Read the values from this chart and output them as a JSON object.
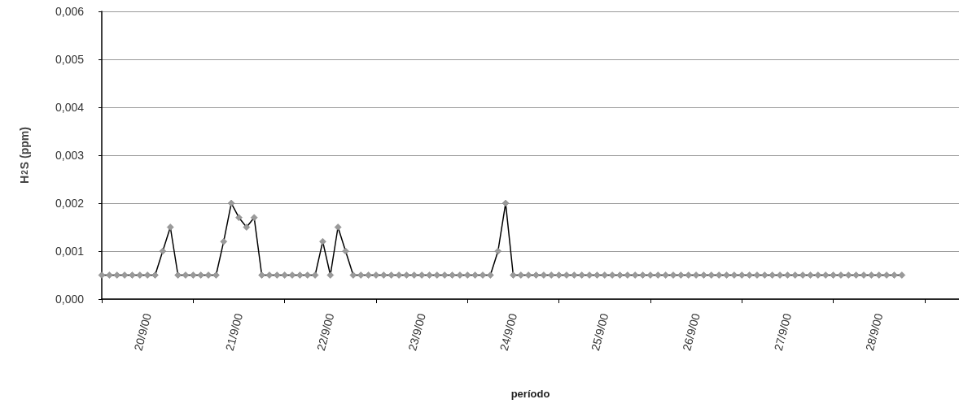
{
  "chart_data": {
    "type": "line",
    "xlabel": "período",
    "ylabel": "H$_{2}$S (ppm)",
    "x": [
      "2000-09-20T00:00",
      "2000-09-20T02:00",
      "2000-09-20T04:00",
      "2000-09-20T06:00",
      "2000-09-20T08:00",
      "2000-09-20T10:00",
      "2000-09-20T12:00",
      "2000-09-20T14:00",
      "2000-09-20T16:00",
      "2000-09-20T18:00",
      "2000-09-20T20:00",
      "2000-09-20T22:00",
      "2000-09-21T00:00",
      "2000-09-21T02:00",
      "2000-09-21T04:00",
      "2000-09-21T06:00",
      "2000-09-21T08:00",
      "2000-09-21T10:00",
      "2000-09-21T12:00",
      "2000-09-21T14:00",
      "2000-09-21T16:00",
      "2000-09-21T18:00",
      "2000-09-21T20:00",
      "2000-09-21T22:00",
      "2000-09-22T00:00",
      "2000-09-22T02:00",
      "2000-09-22T04:00",
      "2000-09-22T06:00",
      "2000-09-22T08:00",
      "2000-09-22T10:00",
      "2000-09-22T12:00",
      "2000-09-22T14:00",
      "2000-09-22T16:00",
      "2000-09-22T18:00",
      "2000-09-22T20:00",
      "2000-09-22T22:00",
      "2000-09-23T00:00",
      "2000-09-23T02:00",
      "2000-09-23T04:00",
      "2000-09-23T06:00",
      "2000-09-23T08:00",
      "2000-09-23T10:00",
      "2000-09-23T12:00",
      "2000-09-23T14:00",
      "2000-09-23T16:00",
      "2000-09-23T18:00",
      "2000-09-23T20:00",
      "2000-09-23T22:00",
      "2000-09-24T00:00",
      "2000-09-24T02:00",
      "2000-09-24T04:00",
      "2000-09-24T06:00",
      "2000-09-24T08:00",
      "2000-09-24T10:00",
      "2000-09-24T12:00",
      "2000-09-24T14:00",
      "2000-09-24T16:00",
      "2000-09-24T18:00",
      "2000-09-24T20:00",
      "2000-09-24T22:00",
      "2000-09-25T00:00",
      "2000-09-25T02:00",
      "2000-09-25T04:00",
      "2000-09-25T06:00",
      "2000-09-25T08:00",
      "2000-09-25T10:00",
      "2000-09-25T12:00",
      "2000-09-25T14:00",
      "2000-09-25T16:00",
      "2000-09-25T18:00",
      "2000-09-25T20:00",
      "2000-09-25T22:00",
      "2000-09-26T00:00",
      "2000-09-26T02:00",
      "2000-09-26T04:00",
      "2000-09-26T06:00",
      "2000-09-26T08:00",
      "2000-09-26T10:00",
      "2000-09-26T12:00",
      "2000-09-26T14:00",
      "2000-09-26T16:00",
      "2000-09-26T18:00",
      "2000-09-26T20:00",
      "2000-09-26T22:00",
      "2000-09-27T00:00",
      "2000-09-27T02:00",
      "2000-09-27T04:00",
      "2000-09-27T06:00",
      "2000-09-27T08:00",
      "2000-09-27T10:00",
      "2000-09-27T12:00",
      "2000-09-27T14:00",
      "2000-09-27T16:00",
      "2000-09-27T18:00",
      "2000-09-27T20:00",
      "2000-09-27T22:00",
      "2000-09-28T00:00",
      "2000-09-28T02:00",
      "2000-09-28T04:00",
      "2000-09-28T06:00",
      "2000-09-28T08:00",
      "2000-09-28T10:00",
      "2000-09-28T12:00",
      "2000-09-28T14:00",
      "2000-09-28T16:00",
      "2000-09-28T18:00"
    ],
    "series": [
      {
        "color": "#9a9a9a",
        "values": [
          0.0005,
          0.0005,
          0.0005,
          0.0005,
          0.0005,
          0.0005,
          0.0005,
          0.0005,
          0.001,
          0.0015,
          0.0005,
          0.0005,
          0.0005,
          0.0005,
          0.0005,
          0.0005,
          0.0012,
          0.002,
          0.0017,
          0.0015,
          0.0017,
          0.0005,
          0.0005,
          0.0005,
          0.0005,
          0.0005,
          0.0005,
          0.0005,
          0.0005,
          0.0012,
          0.0005,
          0.0015,
          0.001,
          0.0005,
          0.0005,
          0.0005,
          0.0005,
          0.0005,
          0.0005,
          0.0005,
          0.0005,
          0.0005,
          0.0005,
          0.0005,
          0.0005,
          0.0005,
          0.0005,
          0.0005,
          0.0005,
          0.0005,
          0.0005,
          0.0005,
          0.001,
          0.002,
          0.0005,
          0.0005,
          0.0005,
          0.0005,
          0.0005,
          0.0005,
          0.0005,
          0.0005,
          0.0005,
          0.0005,
          0.0005,
          0.0005,
          0.0005,
          0.0005,
          0.0005,
          0.0005,
          0.0005,
          0.0005,
          0.0005,
          0.0005,
          0.0005,
          0.0005,
          0.0005,
          0.0005,
          0.0005,
          0.0005,
          0.0005,
          0.0005,
          0.0005,
          0.0005,
          0.0005,
          0.0005,
          0.0005,
          0.0005,
          0.0005,
          0.0005,
          0.0005,
          0.0005,
          0.0005,
          0.0005,
          0.0005,
          0.0005,
          0.0005,
          0.0005,
          0.0005,
          0.0005,
          0.0005,
          0.0005,
          0.0005,
          0.0005,
          0.0005,
          0.0005
        ]
      }
    ],
    "xlim": [
      "2000-09-20T00:00",
      "2000-09-29T09:00"
    ],
    "xticks": [
      {
        "value": "2000-09-20T00:00",
        "label": null
      },
      {
        "value": "2000-09-21T00:00",
        "label": null
      },
      {
        "value": "2000-09-22T00:00",
        "label": null
      },
      {
        "value": "2000-09-23T00:00",
        "label": null
      },
      {
        "value": "2000-09-24T00:00",
        "label": null
      },
      {
        "value": "2000-09-25T00:00",
        "label": null
      },
      {
        "value": "2000-09-26T00:00",
        "label": null
      },
      {
        "value": "2000-09-27T00:00",
        "label": null
      },
      {
        "value": "2000-09-28T00:00",
        "label": null
      },
      {
        "value": "2000-09-29T00:00",
        "label": null
      },
      {
        "value": "2000-09-20T12:00",
        "label": "20/9/00"
      },
      {
        "value": "2000-09-21T12:00",
        "label": "21/9/00"
      },
      {
        "value": "2000-09-22T12:00",
        "label": "22/9/00"
      },
      {
        "value": "2000-09-23T12:00",
        "label": "23/9/00"
      },
      {
        "value": "2000-09-24T12:00",
        "label": "24/9/00"
      },
      {
        "value": "2000-09-25T12:00",
        "label": "25/9/00"
      },
      {
        "value": "2000-09-26T12:00",
        "label": "26/9/00"
      },
      {
        "value": "2000-09-27T12:00",
        "label": "27/9/00"
      },
      {
        "value": "2000-09-28T12:00",
        "label": "28/9/00"
      }
    ],
    "ylim": [
      0,
      0.006
    ],
    "yticks": [
      {
        "value": 0,
        "label": "0,000"
      },
      {
        "value": 0.001,
        "label": "0,001"
      },
      {
        "value": 0.002,
        "label": "0,002"
      },
      {
        "value": 0.003,
        "label": "0,003"
      },
      {
        "value": 0.004,
        "label": "0,004"
      },
      {
        "value": 0.005,
        "label": "0,005"
      },
      {
        "value": 0.006,
        "label": "0,006"
      }
    ],
    "grid": "y",
    "marker": "diamond",
    "line_style": "solid"
  }
}
